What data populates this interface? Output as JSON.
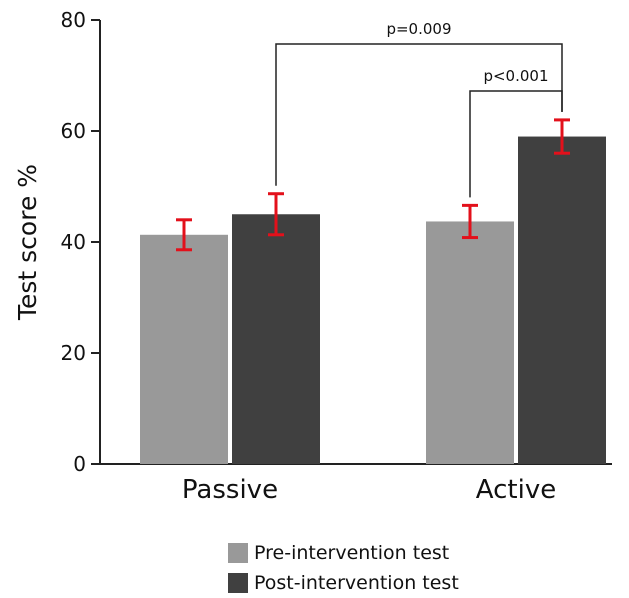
{
  "chart_data": {
    "type": "bar",
    "title": "",
    "xlabel": "",
    "ylabel": "Test score %",
    "ylim": [
      0,
      80
    ],
    "yticks": [
      0,
      20,
      40,
      60,
      80
    ],
    "categories": [
      "Passive",
      "Active"
    ],
    "series": [
      {
        "name": "Pre-intervention test",
        "color": "#999999",
        "values": [
          41.3,
          43.7
        ],
        "errors": [
          2.7,
          2.9
        ]
      },
      {
        "name": "Post-intervention test",
        "color": "#404040",
        "values": [
          45.0,
          59.0
        ],
        "errors": [
          3.7,
          3.0
        ]
      }
    ],
    "error_bar_color": "#e3101b",
    "legend_position": "bottom",
    "grid": false,
    "annotations": [
      {
        "label": "p=0.009",
        "from": {
          "category": "Passive",
          "series": 1
        },
        "to": {
          "category": "Active",
          "series": 1
        }
      },
      {
        "label": "p<0.001",
        "from": {
          "category": "Active",
          "series": 0
        },
        "to": {
          "category": "Active",
          "series": 1
        }
      }
    ]
  }
}
